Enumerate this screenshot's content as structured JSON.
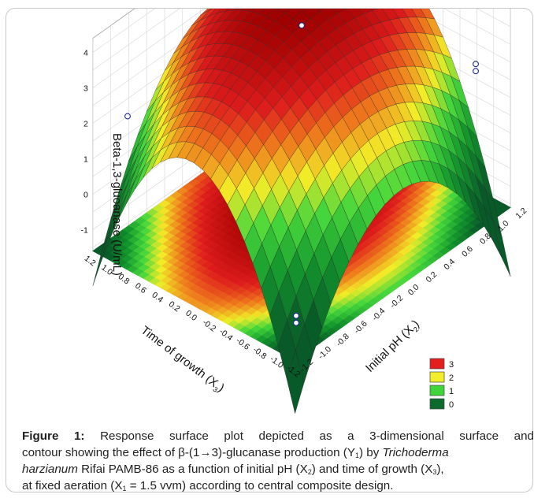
{
  "chart_data": {
    "type": "surface",
    "z_label": "Beta-1,3-gluoanase (U/mL)",
    "x_label_main": "Initial pH (X",
    "x_label_sub": "2",
    "x_label_end": ")",
    "y_label_main": "Time of growth (X",
    "y_label_sub": "3",
    "y_label_end": ")",
    "ph_ticks": [
      "-1.2",
      "-1.0",
      "-0.8",
      "-0.6",
      "-0.4",
      "-0.2",
      "0.0",
      "0.2",
      "0.4",
      "0.6",
      "0.8",
      "1.0",
      "1.2"
    ],
    "time_ticks": [
      "-1.2",
      "-1.0",
      "-0.8",
      "-0.6",
      "-0.4",
      "-0.2",
      "0.0",
      "0.2",
      "0.4",
      "0.6",
      "0.8",
      "1.0",
      "1.2"
    ],
    "z_ticks": [
      "-1",
      "0",
      "1",
      "2",
      "3",
      "4"
    ],
    "zlim": [
      -1.6,
      4.4
    ],
    "legend": [
      {
        "label": "3",
        "color": "#e41e1e"
      },
      {
        "label": "2",
        "color": "#f3ee2a"
      },
      {
        "label": "1",
        "color": "#3fd43a"
      },
      {
        "label": "0",
        "color": "#0c6b2c"
      }
    ],
    "points": [
      {
        "x2": -1.0,
        "x3": 1.0,
        "y": 2.1
      },
      {
        "x2": -1.0,
        "x3": -1.0,
        "y": -0.95
      },
      {
        "x2": -1.0,
        "x3": -1.0,
        "y": -1.15
      },
      {
        "x2": 1.0,
        "x3": 1.0,
        "y": 3.2
      },
      {
        "x2": 0.0,
        "x3": 0.0,
        "y": 4.15
      },
      {
        "x2": 1.0,
        "x3": -1.0,
        "y": 2.35
      },
      {
        "x2": 1.0,
        "x3": -1.0,
        "y": 2.55
      }
    ]
  },
  "caption": {
    "figure_label": "Figure 1:",
    "line1": " Response surface plot depicted as a 3-dimensional surface and",
    "line2a": "contour showing the effect of β-(1→3)-glucanase production (Y",
    "line2a_sub": "1",
    "line2b": ") by ",
    "line2_italic": "Trichoderma",
    "line3_italic": "harzianum",
    "line3a": " Rifai PAMB-86 as a function of initial pH (X",
    "line3a_sub": "2",
    "line3b": ") and time of growth (X",
    "line3b_sub": "3",
    "line3c": "),",
    "line4a": "at fixed aeration (X",
    "line4a_sub": "1",
    "line4b": " = 1.5 vvm) according to central composite design."
  }
}
